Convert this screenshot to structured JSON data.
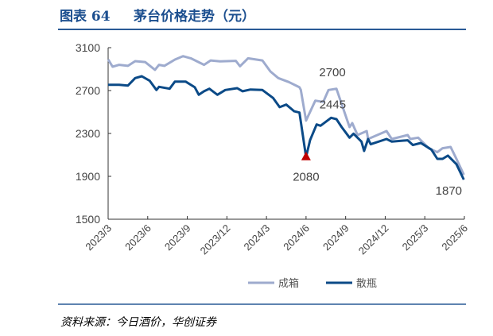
{
  "header": {
    "figure_label": "图表 64",
    "title": "茅台价格走势（元）"
  },
  "footer": {
    "source": "资料来源：今日酒价，华创证券"
  },
  "colors": {
    "title": "#1c4f8f",
    "box": "#9eabce",
    "bottle": "#0b4a87",
    "marker": "#c00000",
    "rule": "#2a5a96"
  },
  "chart_data": {
    "type": "line",
    "title": "茅台价格走势（元）",
    "xlabel": "",
    "ylabel": "",
    "x_unit": "months since 2023/3",
    "xlim": [
      0,
      27
    ],
    "ylim": [
      1500,
      3100
    ],
    "yticks": [
      1500,
      1900,
      2300,
      2700,
      3100
    ],
    "xtick_labels": [
      "2023/3",
      "2023/6",
      "2023/9",
      "2023/12",
      "2024/3",
      "2024/6",
      "2024/9",
      "2024/12",
      "2025/3",
      "2025/6"
    ],
    "grid": false,
    "legend_position": "bottom",
    "series": [
      {
        "name": "成箱",
        "points": [
          [
            0,
            2990
          ],
          [
            0.34,
            2922
          ],
          [
            0.84,
            2940
          ],
          [
            1.5,
            2930
          ],
          [
            2.05,
            2974
          ],
          [
            2.8,
            2966
          ],
          [
            3.55,
            2893
          ],
          [
            3.86,
            2940
          ],
          [
            4.26,
            2930
          ],
          [
            5.06,
            2989
          ],
          [
            5.67,
            3021
          ],
          [
            6.27,
            3001
          ],
          [
            7.27,
            2940
          ],
          [
            7.77,
            2981
          ],
          [
            8.48,
            2972
          ],
          [
            9.68,
            2977
          ],
          [
            9.99,
            2927
          ],
          [
            10.6,
            3001
          ],
          [
            11.69,
            2981
          ],
          [
            12.3,
            2878
          ],
          [
            12.9,
            2816
          ],
          [
            13.7,
            2779
          ],
          [
            14.5,
            2730
          ],
          [
            14.6,
            2707
          ],
          [
            15.0,
            2420
          ],
          [
            15.7,
            2606
          ],
          [
            16.3,
            2594
          ],
          [
            16.7,
            2705
          ],
          [
            17.3,
            2717
          ],
          [
            18.3,
            2359
          ],
          [
            18.5,
            2396
          ],
          [
            18.9,
            2285
          ],
          [
            19.6,
            2322
          ],
          [
            19.7,
            2248
          ],
          [
            21.1,
            2322
          ],
          [
            21.5,
            2248
          ],
          [
            22.7,
            2285
          ],
          [
            22.9,
            2248
          ],
          [
            23.5,
            2261
          ],
          [
            24.3,
            2162
          ],
          [
            24.95,
            2125
          ],
          [
            25.35,
            2162
          ],
          [
            25.96,
            2174
          ],
          [
            26.4,
            2063
          ],
          [
            26.96,
            1915
          ]
        ]
      },
      {
        "name": "散瓶",
        "points": [
          [
            0,
            2754
          ],
          [
            0.84,
            2754
          ],
          [
            1.5,
            2747
          ],
          [
            2.05,
            2816
          ],
          [
            2.55,
            2833
          ],
          [
            3.15,
            2791
          ],
          [
            3.66,
            2705
          ],
          [
            3.86,
            2735
          ],
          [
            4.66,
            2717
          ],
          [
            5.06,
            2784
          ],
          [
            5.87,
            2784
          ],
          [
            6.57,
            2730
          ],
          [
            6.87,
            2661
          ],
          [
            7.27,
            2693
          ],
          [
            7.67,
            2717
          ],
          [
            8.28,
            2661
          ],
          [
            8.88,
            2705
          ],
          [
            9.78,
            2722
          ],
          [
            10.19,
            2693
          ],
          [
            10.79,
            2710
          ],
          [
            11.69,
            2705
          ],
          [
            12.5,
            2631
          ],
          [
            13.0,
            2545
          ],
          [
            13.5,
            2569
          ],
          [
            14.1,
            2507
          ],
          [
            14.5,
            2495
          ],
          [
            15.0,
            2080
          ],
          [
            15.3,
            2236
          ],
          [
            15.8,
            2384
          ],
          [
            16.1,
            2372
          ],
          [
            16.9,
            2446
          ],
          [
            17.3,
            2433
          ],
          [
            17.7,
            2359
          ],
          [
            18.3,
            2261
          ],
          [
            18.6,
            2298
          ],
          [
            19.2,
            2224
          ],
          [
            19.4,
            2137
          ],
          [
            19.7,
            2248
          ],
          [
            19.9,
            2199
          ],
          [
            21.1,
            2248
          ],
          [
            21.5,
            2224
          ],
          [
            22.7,
            2236
          ],
          [
            23.1,
            2192
          ],
          [
            23.7,
            2211
          ],
          [
            24.5,
            2150
          ],
          [
            24.95,
            2063
          ],
          [
            25.35,
            2063
          ],
          [
            25.75,
            2093
          ],
          [
            26.4,
            2013
          ],
          [
            26.96,
            1870
          ]
        ]
      }
    ],
    "annotations": [
      {
        "text": "2700",
        "series": "成箱",
        "x": 17.0,
        "y": 2700
      },
      {
        "text": "2445",
        "series": "散瓶",
        "x": 16.9,
        "y": 2445
      },
      {
        "text": "2080",
        "series": "散瓶",
        "x": 15.0,
        "y": 2080,
        "marker": "triangle"
      },
      {
        "text": "1870",
        "series": "散瓶",
        "x": 26.96,
        "y": 1870
      }
    ]
  }
}
